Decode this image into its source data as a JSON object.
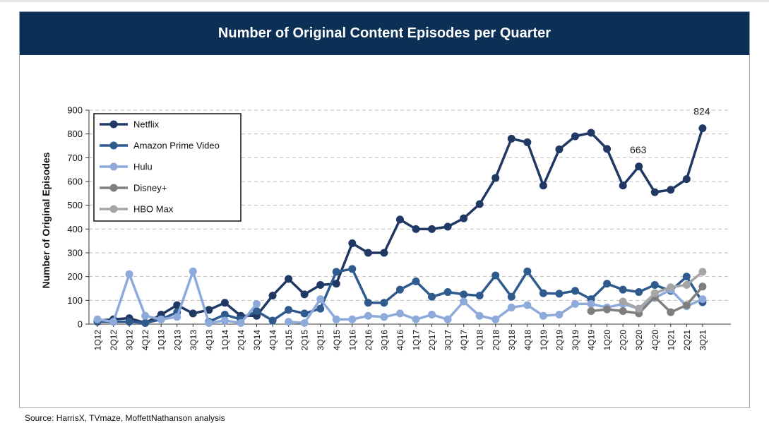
{
  "source": "Source: HarrisX, TVmaze, MoffettNathanson analysis",
  "chart_data": {
    "type": "line",
    "title": "Number of Original Content Episodes per Quarter",
    "ylabel": "Number of Original Episodes",
    "xlabel": "",
    "ylim": [
      0,
      900
    ],
    "yticks": [
      0,
      100,
      200,
      300,
      400,
      500,
      600,
      700,
      800,
      900
    ],
    "grid": true,
    "legend_position": "top-left",
    "categories": [
      "1Q12",
      "2Q12",
      "3Q12",
      "4Q12",
      "1Q13",
      "2Q13",
      "3Q13",
      "4Q13",
      "1Q14",
      "2Q14",
      "3Q14",
      "4Q14",
      "1Q15",
      "2Q15",
      "3Q15",
      "4Q15",
      "1Q16",
      "2Q16",
      "3Q16",
      "4Q16",
      "1Q17",
      "2Q17",
      "3Q17",
      "4Q17",
      "1Q18",
      "2Q18",
      "3Q18",
      "4Q18",
      "1Q19",
      "2Q19",
      "3Q19",
      "4Q19",
      "1Q20",
      "2Q20",
      "3Q20",
      "4Q20",
      "1Q21",
      "2Q21",
      "3Q21"
    ],
    "series": [
      {
        "name": "Netflix",
        "color": "#1f3864",
        "values": [
          15,
          20,
          25,
          5,
          40,
          80,
          45,
          60,
          90,
          35,
          35,
          120,
          190,
          125,
          165,
          170,
          340,
          300,
          300,
          440,
          400,
          400,
          410,
          445,
          505,
          615,
          780,
          765,
          583,
          735,
          790,
          805,
          737,
          583,
          663,
          555,
          565,
          610,
          824
        ]
      },
      {
        "name": "Amazon Prime Video",
        "color": "#2e5a8e",
        "values": [
          10,
          10,
          10,
          5,
          20,
          50,
          null,
          10,
          40,
          20,
          55,
          15,
          60,
          45,
          65,
          220,
          232,
          90,
          90,
          145,
          180,
          115,
          135,
          125,
          120,
          205,
          115,
          222,
          130,
          128,
          140,
          105,
          170,
          145,
          135,
          165,
          140,
          200,
          92
        ]
      },
      {
        "name": "Hulu",
        "color": "#8eaadb",
        "values": [
          20,
          10,
          210,
          35,
          20,
          30,
          222,
          5,
          15,
          5,
          85,
          null,
          10,
          5,
          105,
          20,
          20,
          35,
          30,
          45,
          20,
          40,
          20,
          95,
          35,
          20,
          70,
          80,
          35,
          40,
          85,
          85,
          70,
          85,
          65,
          110,
          145,
          75,
          105
        ]
      },
      {
        "name": "Disney+",
        "color": "#7f7f7f",
        "values": [
          null,
          null,
          null,
          null,
          null,
          null,
          null,
          null,
          null,
          null,
          null,
          null,
          null,
          null,
          null,
          null,
          null,
          null,
          null,
          null,
          null,
          null,
          null,
          null,
          null,
          null,
          null,
          null,
          null,
          null,
          null,
          55,
          62,
          55,
          45,
          115,
          50,
          80,
          158
        ]
      },
      {
        "name": "HBO Max",
        "color": "#a6a6a6",
        "values": [
          null,
          null,
          null,
          null,
          null,
          null,
          null,
          null,
          null,
          null,
          null,
          null,
          null,
          null,
          null,
          null,
          null,
          null,
          null,
          null,
          null,
          null,
          null,
          null,
          null,
          null,
          null,
          null,
          null,
          null,
          null,
          null,
          null,
          95,
          65,
          130,
          155,
          165,
          220
        ]
      }
    ],
    "annotations": [
      {
        "text": "824",
        "category": "3Q21",
        "value": 824
      },
      {
        "text": "663",
        "category": "3Q20",
        "value": 663
      }
    ]
  }
}
